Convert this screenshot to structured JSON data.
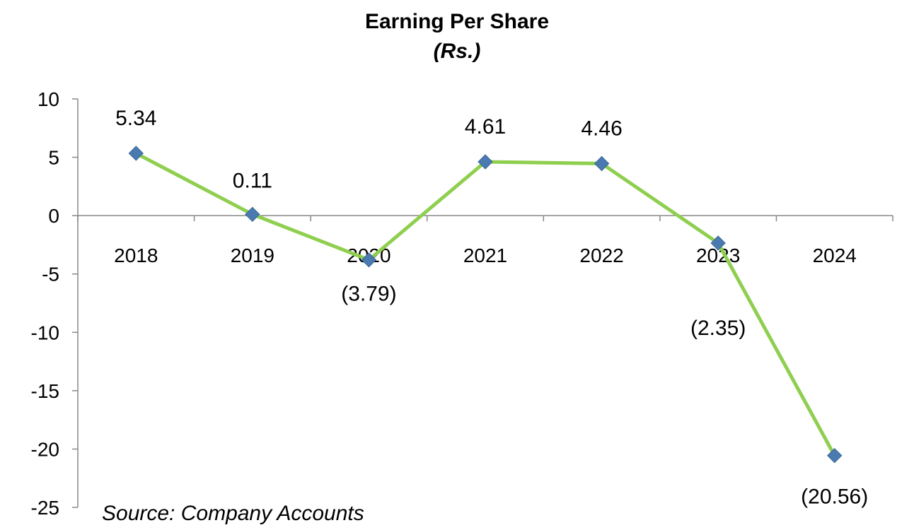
{
  "chart_data": {
    "type": "line",
    "title": "Earning Per Share",
    "subtitle": "(Rs.)",
    "categories": [
      "2018",
      "2019",
      "2020",
      "2021",
      "2022",
      "2023",
      "2024"
    ],
    "series": [
      {
        "values": [
          5.34,
          0.11,
          -3.79,
          4.61,
          4.46,
          -2.35,
          -20.56
        ],
        "data_labels": [
          "5.34",
          "0.11",
          "(3.79)",
          "4.61",
          "4.46",
          "(2.35)",
          "(20.56)"
        ]
      }
    ],
    "yticks": [
      "10",
      "5",
      "0",
      "-5",
      "-10",
      "-15",
      "-20",
      "-25"
    ],
    "ylim": [
      -25,
      10
    ],
    "grid": false,
    "legend": "none",
    "line_color": "#8fcf4f",
    "marker_color": "#4a7ab0",
    "marker_shape": "diamond",
    "source_note": "Source: Company  Accounts"
  }
}
